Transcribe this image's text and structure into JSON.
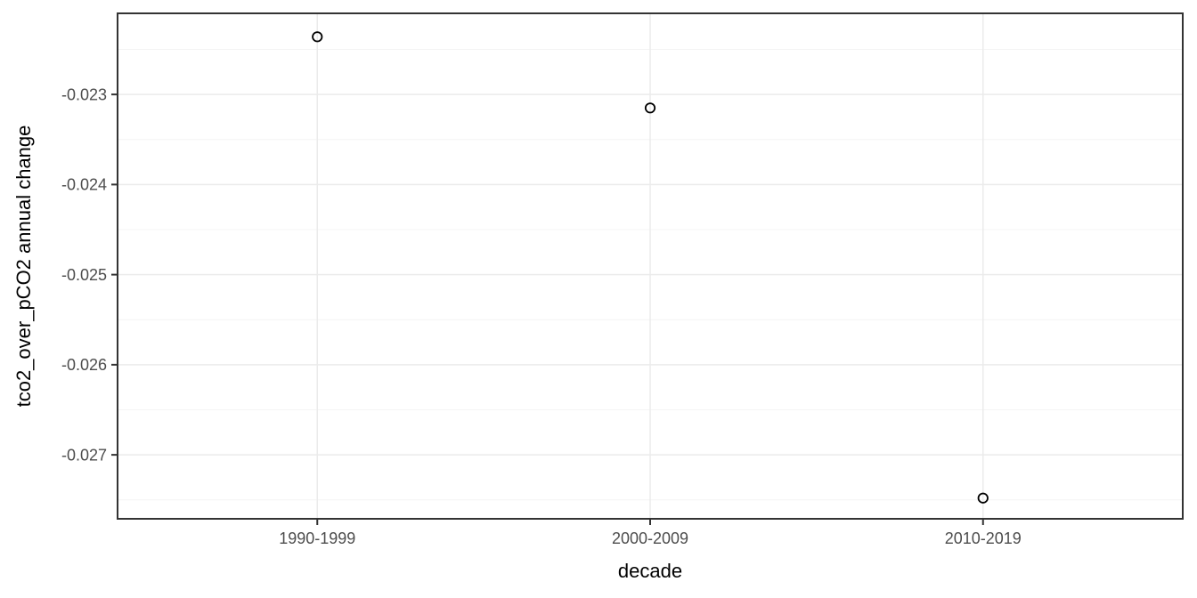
{
  "chart_data": {
    "type": "scatter",
    "title": "",
    "xlabel": "decade",
    "ylabel": "tco2_over_pCO2 annual change",
    "categories": [
      "1990-1999",
      "2000-2009",
      "2010-2019"
    ],
    "series": [
      {
        "name": "tco2_over_pCO2 annual change",
        "values": [
          -0.02236,
          -0.02315,
          -0.02748
        ]
      }
    ],
    "x_positions": [
      1,
      2,
      3
    ],
    "xlim": [
      0.4,
      3.6
    ],
    "ylim": [
      -0.02771,
      -0.0221
    ],
    "y_major_ticks": [
      -0.023,
      -0.024,
      -0.025,
      -0.026,
      -0.027
    ],
    "y_tick_labels": [
      "-0.023",
      "-0.024",
      "-0.025",
      "-0.026",
      "-0.027"
    ],
    "y_minor_ticks": [
      -0.0225,
      -0.0235,
      -0.0245,
      -0.0255,
      -0.0265,
      -0.0275
    ],
    "grid": "major-and-minor",
    "legend_position": "none",
    "style": {
      "point_shape": "open-circle",
      "point_color": "#000000",
      "background_color": "#ffffff",
      "panel_border_color": "#333333",
      "major_grid_color": "#ebebeb",
      "minor_grid_color": "#f4f4f4",
      "tick_mark_color": "#333333",
      "tick_label_color": "#4d4d4d",
      "axis_title_color": "#000000"
    }
  }
}
